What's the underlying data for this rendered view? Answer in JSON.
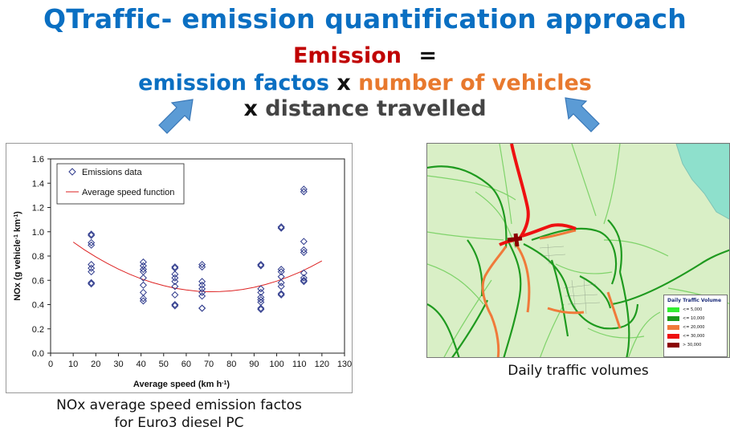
{
  "title": "QTraffic- emission quantification approach",
  "formula": {
    "emission": "Emission",
    "equals": "=",
    "emission_factors": "emission factos",
    "times1": "x",
    "num_vehicles": "number of vehicles",
    "times2": "x",
    "distance": "distance travelled"
  },
  "chart_caption": {
    "line1": "NOx average speed emission factos",
    "line2": "for Euro3 diesel PC"
  },
  "map_caption": "Daily traffic volumes",
  "map_legend": {
    "title": "Daily Traffic Volume",
    "items": [
      {
        "label": "<= 5,000",
        "color": "#33ee33"
      },
      {
        "label": "<= 10,000",
        "color": "#1a9a1a"
      },
      {
        "label": "<= 20,000",
        "color": "#f07a3a"
      },
      {
        "label": "<= 30,000",
        "color": "#ee1111"
      },
      {
        "label": "> 30,000",
        "color": "#8b0000"
      }
    ]
  },
  "colors": {
    "title_blue": "#0a6fc2",
    "emission_red": "#c00000",
    "vehicles_orange": "#e8792e",
    "arrow_blue": "#5b9bd5",
    "marker": "#2e3a8c",
    "fit_line": "#dd2222"
  },
  "chart_data": {
    "type": "scatter",
    "xlabel_main": "Average speed (km h",
    "xlabel_sup": "-1",
    "xlabel_end": ")",
    "ylabel_main": "NOx (g vehicle",
    "ylabel_sup1": "-1",
    "ylabel_mid": " km",
    "ylabel_sup2": "-1",
    "ylabel_end": ")",
    "xlim": [
      0,
      130
    ],
    "ylim": [
      0,
      1.6
    ],
    "xticks": [
      "0",
      "10",
      "20",
      "30",
      "40",
      "50",
      "60",
      "70",
      "80",
      "90",
      "100",
      "110",
      "120",
      "130"
    ],
    "yticks": [
      "0.0",
      "0.2",
      "0.4",
      "0.6",
      "0.8",
      "1.0",
      "1.2",
      "1.4",
      "1.6"
    ],
    "legend_position": "top-left",
    "series": [
      {
        "name": "Emissions data",
        "marker": "diamond",
        "points": [
          [
            18,
            0.98
          ],
          [
            18,
            0.97
          ],
          [
            18,
            0.91
          ],
          [
            18,
            0.89
          ],
          [
            18,
            0.73
          ],
          [
            18,
            0.7
          ],
          [
            18,
            0.67
          ],
          [
            18,
            0.58
          ],
          [
            18,
            0.57
          ],
          [
            41,
            0.75
          ],
          [
            41,
            0.72
          ],
          [
            41,
            0.69
          ],
          [
            41,
            0.67
          ],
          [
            41,
            0.62
          ],
          [
            41,
            0.56
          ],
          [
            41,
            0.5
          ],
          [
            41,
            0.45
          ],
          [
            41,
            0.43
          ],
          [
            55,
            0.71
          ],
          [
            55,
            0.7
          ],
          [
            55,
            0.65
          ],
          [
            55,
            0.62
          ],
          [
            55,
            0.59
          ],
          [
            55,
            0.55
          ],
          [
            55,
            0.48
          ],
          [
            55,
            0.4
          ],
          [
            55,
            0.39
          ],
          [
            67,
            0.73
          ],
          [
            67,
            0.71
          ],
          [
            67,
            0.59
          ],
          [
            67,
            0.56
          ],
          [
            67,
            0.53
          ],
          [
            67,
            0.5
          ],
          [
            67,
            0.47
          ],
          [
            67,
            0.37
          ],
          [
            67,
            0.37
          ],
          [
            93,
            0.73
          ],
          [
            93,
            0.72
          ],
          [
            93,
            0.53
          ],
          [
            93,
            0.5
          ],
          [
            93,
            0.46
          ],
          [
            93,
            0.44
          ],
          [
            93,
            0.42
          ],
          [
            93,
            0.37
          ],
          [
            93,
            0.36
          ],
          [
            102,
            1.04
          ],
          [
            102,
            1.03
          ],
          [
            102,
            0.69
          ],
          [
            102,
            0.67
          ],
          [
            102,
            0.63
          ],
          [
            102,
            0.58
          ],
          [
            102,
            0.55
          ],
          [
            102,
            0.49
          ],
          [
            102,
            0.48
          ],
          [
            112,
            1.35
          ],
          [
            112,
            1.33
          ],
          [
            112,
            0.92
          ],
          [
            112,
            0.85
          ],
          [
            112,
            0.83
          ],
          [
            112,
            0.66
          ],
          [
            112,
            0.62
          ],
          [
            112,
            0.6
          ],
          [
            112,
            0.59
          ]
        ]
      },
      {
        "name": "Average speed function",
        "type": "line",
        "x": [
          10,
          15,
          20,
          25,
          30,
          35,
          40,
          45,
          50,
          55,
          60,
          65,
          70,
          75,
          80,
          85,
          90,
          95,
          100,
          105,
          110,
          115,
          120
        ],
        "y": [
          0.915,
          0.851,
          0.793,
          0.74,
          0.692,
          0.65,
          0.613,
          0.582,
          0.556,
          0.535,
          0.52,
          0.51,
          0.506,
          0.507,
          0.513,
          0.525,
          0.542,
          0.565,
          0.593,
          0.627,
          0.666,
          0.71,
          0.76
        ]
      }
    ]
  }
}
